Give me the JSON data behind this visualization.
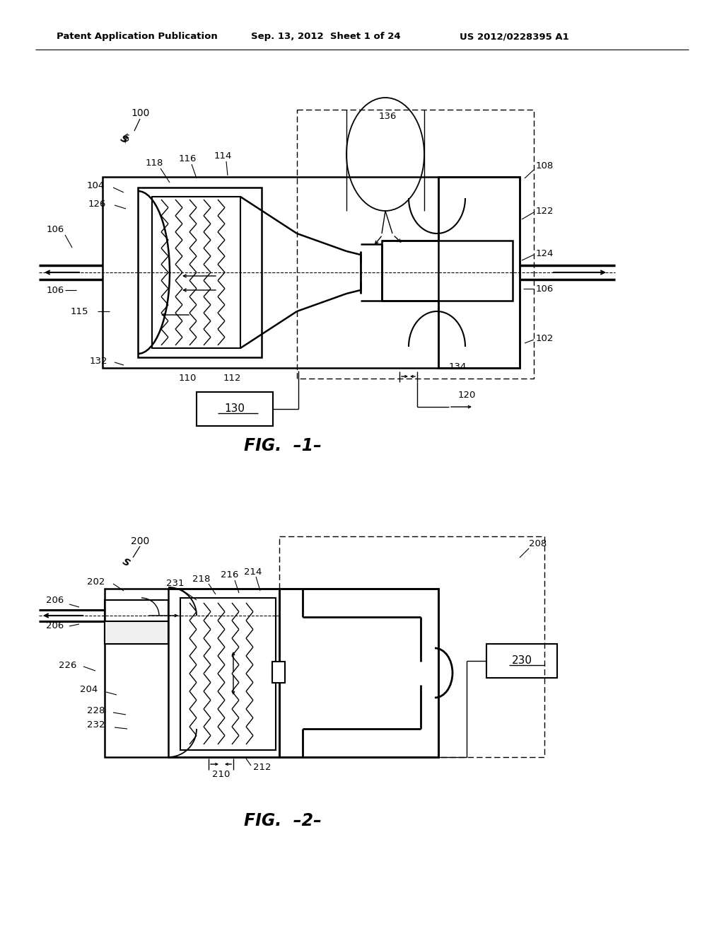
{
  "background_color": "#ffffff",
  "header_left": "Patent Application Publication",
  "header_center": "Sep. 13, 2012  Sheet 1 of 24",
  "header_right": "US 2012/0228395 A1",
  "fig1_caption": "FIG.  –1–",
  "fig2_caption": "FIG.  –2–",
  "line_color": "#000000",
  "text_color": "#000000"
}
